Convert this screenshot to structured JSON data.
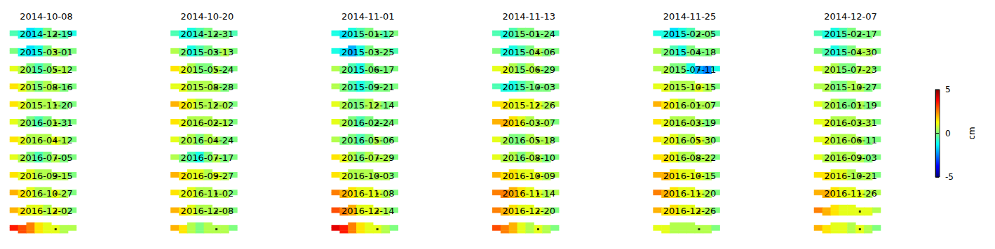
{
  "chart_data": {
    "type": "heatmap_grid",
    "dates": [
      "2014-10-08",
      "2014-10-20",
      "2014-11-01",
      "2014-11-13",
      "2014-11-25",
      "2014-12-07",
      "2014-12-19",
      "2014-12-31",
      "2015-01-12",
      "2015-01-24",
      "2015-02-05",
      "2015-02-17",
      "2015-03-01",
      "2015-03-13",
      "2015-03-25",
      "2015-04-06",
      "2015-04-18",
      "2015-04-30",
      "2015-05-12",
      "2015-05-24",
      "2015-06-17",
      "2015-06-29",
      "2015-07-11",
      "2015-07-23",
      "2015-08-16",
      "2015-08-28",
      "2015-09-21",
      "2015-10-03",
      "2015-10-15",
      "2015-10-27",
      "2015-11-20",
      "2015-12-02",
      "2015-12-14",
      "2015-12-26",
      "2016-01-07",
      "2016-01-19",
      "2016-01-31",
      "2016-02-12",
      "2016-02-24",
      "2016-03-07",
      "2016-03-19",
      "2016-03-31",
      "2016-04-12",
      "2016-04-24",
      "2016-05-06",
      "2016-05-18",
      "2016-05-30",
      "2016-06-11",
      "2016-07-05",
      "2016-07-17",
      "2016-07-29",
      "2016-08-10",
      "2016-08-22",
      "2016-09-03",
      "2016-09-15",
      "2016-09-27",
      "2016-10-03",
      "2016-10-09",
      "2016-10-15",
      "2016-10-21",
      "2016-10-27",
      "2016-11-02",
      "2016-11-08",
      "2016-11-14",
      "2016-11-20",
      "2016-11-26",
      "2016-12-02",
      "2016-12-08",
      "2016-12-14",
      "2016-12-20",
      "2016-12-26",
      null
    ],
    "values": [
      [
        -0.5,
        -1,
        -1.5,
        -1,
        0,
        0,
        -0.5,
        -1
      ],
      [
        -0.5,
        -1,
        -1,
        -0.5,
        0,
        0,
        0,
        -0.5
      ],
      [
        -1,
        -1.5,
        -1,
        -0.5,
        0,
        0,
        -0.5,
        0
      ],
      [
        -0.5,
        -1,
        -0.5,
        0,
        0,
        0,
        0,
        -0.5
      ],
      [
        -1,
        -1,
        -1.5,
        -1,
        -0.5,
        0,
        0,
        -0.5
      ],
      [
        -0.5,
        -1,
        -1,
        -0.5,
        0,
        0,
        0,
        0
      ],
      [
        0,
        -1,
        -1.5,
        -1,
        0,
        0.5,
        0,
        0
      ],
      [
        0.5,
        0,
        -1,
        -0.5,
        0,
        0,
        0.5,
        0
      ],
      [
        -1,
        -1.5,
        -2,
        -1,
        0,
        0,
        0,
        -0.5
      ],
      [
        0,
        -1,
        -1,
        -0.5,
        0,
        0.5,
        0,
        0
      ],
      [
        0.5,
        0,
        -0.5,
        -1,
        0,
        0,
        0,
        0
      ],
      [
        0,
        -0.5,
        -1,
        -0.5,
        0,
        0.5,
        0.5,
        0
      ],
      [
        1,
        0.5,
        0,
        -0.5,
        0,
        0.5,
        0.5,
        0
      ],
      [
        1.5,
        1,
        0.5,
        0,
        0,
        0.5,
        0,
        0
      ],
      [
        0.5,
        0,
        -0.5,
        -1,
        0,
        0,
        0,
        0
      ],
      [
        1,
        1,
        0.5,
        0,
        0.5,
        0.5,
        0,
        0
      ],
      [
        0.5,
        0.5,
        0,
        0,
        -1,
        -2,
        -2.5,
        -1
      ],
      [
        1,
        0.5,
        0.5,
        0,
        0,
        0.5,
        0.5,
        0
      ],
      [
        1.5,
        1,
        0.5,
        0,
        0.5,
        0.5,
        0,
        0
      ],
      [
        1,
        1,
        0.5,
        0.5,
        0.5,
        0.5,
        0,
        0
      ],
      [
        0.5,
        0,
        -0.5,
        -1,
        -0.5,
        0,
        0,
        0
      ],
      [
        -0.5,
        -1,
        -1,
        -0.5,
        0,
        0,
        0,
        0
      ],
      [
        1,
        1,
        0.5,
        0.5,
        0.5,
        1,
        0.5,
        0
      ],
      [
        0.5,
        0.5,
        0,
        0,
        0.5,
        0.5,
        0,
        0
      ],
      [
        1.5,
        1,
        0.5,
        0.5,
        0.5,
        0.5,
        0,
        0
      ],
      [
        2,
        1.5,
        1,
        0.5,
        0.5,
        0.5,
        0.5,
        0
      ],
      [
        1,
        0.5,
        0,
        0,
        0.5,
        0.5,
        0,
        0
      ],
      [
        1.5,
        1.5,
        1,
        1,
        1,
        1,
        0.5,
        0.5
      ],
      [
        2,
        1.5,
        1,
        0.5,
        0.5,
        0.5,
        0.5,
        0
      ],
      [
        1,
        0.5,
        0.5,
        0,
        0,
        0.5,
        0,
        0
      ],
      [
        1,
        0.5,
        0,
        -0.5,
        0,
        0.5,
        0,
        0
      ],
      [
        1.5,
        1,
        0.5,
        0.5,
        0.5,
        0.5,
        0.5,
        0
      ],
      [
        1,
        0.5,
        0,
        -0.5,
        0,
        0,
        0,
        0
      ],
      [
        2,
        2,
        1.5,
        1,
        0.5,
        0.5,
        0.5,
        0
      ],
      [
        1.5,
        1,
        0.5,
        0.5,
        0.5,
        0.5,
        0,
        0
      ],
      [
        1,
        1,
        0.5,
        0.5,
        0.5,
        0.5,
        0.5,
        0
      ],
      [
        1.5,
        1,
        0.5,
        0.5,
        0.5,
        1,
        0.5,
        0
      ],
      [
        1,
        0.5,
        0.5,
        0,
        0.5,
        0.5,
        0,
        0
      ],
      [
        0.5,
        0,
        0,
        -0.5,
        0,
        0.5,
        0,
        0
      ],
      [
        1,
        0.5,
        0,
        0,
        0.5,
        0.5,
        0.5,
        0
      ],
      [
        1.5,
        1,
        1,
        0.5,
        0.5,
        1,
        0.5,
        0
      ],
      [
        1,
        1,
        0.5,
        0.5,
        0.5,
        0.5,
        0,
        0
      ],
      [
        1,
        0.5,
        0,
        -0.5,
        0,
        0.5,
        0,
        0
      ],
      [
        0.5,
        0,
        -0.5,
        -1,
        0,
        0.5,
        0,
        0
      ],
      [
        1.5,
        1,
        0.5,
        0,
        0.5,
        0.5,
        0.5,
        0
      ],
      [
        1,
        0.5,
        0.5,
        0,
        0.5,
        0.5,
        0,
        0
      ],
      [
        1.5,
        1.5,
        1,
        0.5,
        0.5,
        0.5,
        0.5,
        0
      ],
      [
        1,
        0.5,
        0.5,
        0.5,
        0.5,
        0.5,
        0,
        0
      ],
      [
        1.5,
        1,
        1,
        0.5,
        0.5,
        0.5,
        0.5,
        0
      ],
      [
        2,
        1.5,
        1,
        1,
        0.5,
        1,
        0.5,
        0
      ],
      [
        1.5,
        1,
        0.5,
        0.5,
        0.5,
        0.5,
        0.5,
        0
      ],
      [
        2,
        1.5,
        1.5,
        1,
        1,
        1,
        0.5,
        0.5
      ],
      [
        2,
        2,
        1.5,
        1,
        1,
        1,
        0.5,
        0
      ],
      [
        1.5,
        1.5,
        1,
        1,
        0.5,
        0.5,
        0.5,
        0
      ],
      [
        2,
        1.5,
        1,
        0.5,
        0.5,
        1,
        0.5,
        0
      ],
      [
        1.5,
        1,
        1,
        0.5,
        0.5,
        0.5,
        0.5,
        0
      ],
      [
        2.5,
        2,
        1.5,
        1,
        1,
        1,
        0.5,
        0
      ],
      [
        2.5,
        2.5,
        2,
        1.5,
        1,
        1,
        0.5,
        0.5
      ],
      [
        2.5,
        2,
        1.5,
        1,
        1,
        1,
        0.5,
        0
      ],
      [
        2,
        2,
        1.5,
        1,
        1,
        1,
        0.5,
        0.5
      ],
      [
        2,
        1.5,
        1,
        1,
        0.5,
        1,
        0.5,
        0
      ],
      [
        2,
        1.5,
        1,
        0.5,
        0.5,
        0.5,
        0.5,
        0
      ],
      [
        3,
        2.5,
        2,
        1,
        1,
        1,
        0.5,
        0
      ],
      [
        2.5,
        2,
        1.5,
        1,
        1,
        1,
        0.5,
        0
      ],
      [
        2,
        1.5,
        1.5,
        1,
        1,
        1,
        0.5,
        0
      ],
      [
        2.5,
        2,
        1.5,
        1,
        1,
        1,
        1,
        0.5
      ],
      [
        3.5,
        3,
        2.5,
        1.5,
        1,
        1,
        0.5,
        0.5
      ],
      [
        2,
        1.5,
        0.5,
        0,
        0.5,
        0.5,
        0.5,
        0
      ],
      [
        4,
        3.5,
        2.5,
        1.5,
        1,
        1,
        0.5,
        0
      ],
      [
        3,
        2.5,
        2,
        1,
        0.5,
        1,
        0.5,
        0
      ],
      [
        1,
        1,
        0.5,
        0.5,
        0.5,
        0.5,
        0.5,
        0
      ],
      [
        2,
        1.5,
        1,
        1,
        0.5,
        1,
        0.5,
        0
      ]
    ],
    "column_heights": [
      2,
      3,
      4,
      4,
      4,
      3,
      3,
      2
    ],
    "reference_cell": [
      5,
      1
    ],
    "colorbar": {
      "range": [
        -5,
        5
      ],
      "ticks": [
        -5,
        0,
        5
      ],
      "label": "cm"
    }
  }
}
